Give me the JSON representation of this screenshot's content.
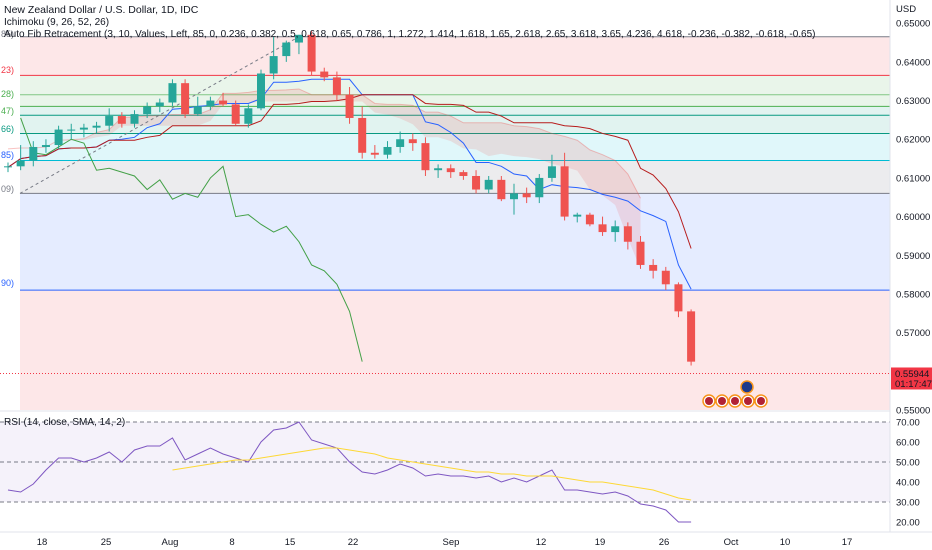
{
  "legend": {
    "title": "New Zealand Dollar / U.S. Dollar, 1D, IDC",
    "ichimoku": "Ichimoku (9, 26, 52, 26)",
    "fib": "Auto Fib Retracement (3, 10, Values, Left, 85, 0, 0.236, 0.382, 0.5, 0.618, 0.65, 0.786, 1, 1.272, 1.414, 1.618, 1.65, 2.618, 2.65, 3.618, 3.65, 4.236, 4.618, -0.236, -0.382, -0.618, -0.65)",
    "rsi": "RSI (14, close, SMA, 14, 2)"
  },
  "price_axis": {
    "currency": "USD",
    "ticks": [
      "0.65000",
      "0.64000",
      "0.63000",
      "0.62000",
      "0.61000",
      "0.60000",
      "0.59000",
      "0.58000",
      "0.57000",
      "0.56000",
      "0.55000"
    ],
    "current_price": "0.55944",
    "countdown": "01:17:47"
  },
  "rsi_axis": {
    "ticks": [
      "70.00",
      "60.00",
      "50.00",
      "40.00",
      "30.00",
      "20.00"
    ]
  },
  "time_axis": {
    "ticks": [
      "18",
      "25",
      "Aug",
      "8",
      "15",
      "22",
      "Sep",
      "12",
      "19",
      "26",
      "Oct",
      "10",
      "17"
    ]
  },
  "fib_tags": [
    {
      "text": "85)",
      "color": "#787b86"
    },
    {
      "text": "23)",
      "color": "#f23645"
    },
    {
      "text": "28)",
      "color": "#4caf50"
    },
    {
      "text": "47)",
      "color": "#4caf50"
    },
    {
      "text": "66)",
      "color": "#089981"
    },
    {
      "text": "85)",
      "color": "#2962ff"
    },
    {
      "text": "09)",
      "color": "#787b86"
    },
    {
      "text": "90)",
      "color": "#2962ff"
    }
  ],
  "colors": {
    "up": "#26a69a",
    "down": "#ef5350",
    "tenkan": "#2962ff",
    "kijun": "#b71c1c",
    "lagging": "#43a047",
    "rsi": "#7e57c2",
    "rsi_ma": "#fdd835",
    "price_tag": "#f23645"
  },
  "chart_data": {
    "type": "candlestick",
    "x_dates": [
      "Jul 15",
      "Jul 18",
      "Jul 19",
      "Jul 20",
      "Jul 21",
      "Jul 22",
      "Jul 25",
      "Jul 26",
      "Jul 27",
      "Jul 28",
      "Jul 29",
      "Aug 1",
      "Aug 2",
      "Aug 3",
      "Aug 4",
      "Aug 5",
      "Aug 8",
      "Aug 9",
      "Aug 10",
      "Aug 11",
      "Aug 12",
      "Aug 15",
      "Aug 16",
      "Aug 17",
      "Aug 18",
      "Aug 19",
      "Aug 22",
      "Aug 23",
      "Aug 24",
      "Aug 25",
      "Aug 26",
      "Aug 29",
      "Aug 30",
      "Aug 31",
      "Sep 1",
      "Sep 2",
      "Sep 5",
      "Sep 6",
      "Sep 7",
      "Sep 8",
      "Sep 9",
      "Sep 12",
      "Sep 13",
      "Sep 14",
      "Sep 15",
      "Sep 16",
      "Sep 19",
      "Sep 20",
      "Sep 21",
      "Sep 22",
      "Sep 23",
      "Sep 26",
      "Sep 27",
      "Sep 28",
      "Sep 29"
    ],
    "ohlc": [
      [
        0.613,
        0.614,
        0.6115,
        0.613
      ],
      [
        0.613,
        0.6185,
        0.612,
        0.6145
      ],
      [
        0.6145,
        0.6195,
        0.613,
        0.618
      ],
      [
        0.618,
        0.62,
        0.6165,
        0.6185
      ],
      [
        0.6185,
        0.6235,
        0.6175,
        0.6225
      ],
      [
        0.6225,
        0.624,
        0.62,
        0.6225
      ],
      [
        0.6225,
        0.624,
        0.6205,
        0.623
      ],
      [
        0.623,
        0.6245,
        0.6215,
        0.6235
      ],
      [
        0.6235,
        0.628,
        0.622,
        0.626
      ],
      [
        0.626,
        0.627,
        0.623,
        0.624
      ],
      [
        0.624,
        0.6275,
        0.623,
        0.6265
      ],
      [
        0.6265,
        0.6295,
        0.6255,
        0.6285
      ],
      [
        0.6285,
        0.6305,
        0.627,
        0.6295
      ],
      [
        0.6295,
        0.6355,
        0.6285,
        0.6345
      ],
      [
        0.6345,
        0.6355,
        0.6255,
        0.6265
      ],
      [
        0.6265,
        0.631,
        0.626,
        0.6285
      ],
      [
        0.6285,
        0.631,
        0.6275,
        0.63
      ],
      [
        0.63,
        0.632,
        0.6285,
        0.629
      ],
      [
        0.629,
        0.63,
        0.6235,
        0.624
      ],
      [
        0.624,
        0.629,
        0.623,
        0.628
      ],
      [
        0.628,
        0.638,
        0.6275,
        0.637
      ],
      [
        0.637,
        0.6465,
        0.6355,
        0.6415
      ],
      [
        0.6415,
        0.6455,
        0.64,
        0.645
      ],
      [
        0.645,
        0.647,
        0.642,
        0.647
      ],
      [
        0.647,
        0.648,
        0.6365,
        0.6375
      ],
      [
        0.6375,
        0.6385,
        0.635,
        0.636
      ],
      [
        0.636,
        0.6375,
        0.63,
        0.6315
      ],
      [
        0.6315,
        0.6335,
        0.624,
        0.6255
      ],
      [
        0.6255,
        0.6285,
        0.615,
        0.6165
      ],
      [
        0.6165,
        0.6185,
        0.615,
        0.616
      ],
      [
        0.616,
        0.6195,
        0.615,
        0.618
      ],
      [
        0.618,
        0.622,
        0.6165,
        0.62
      ],
      [
        0.62,
        0.6215,
        0.617,
        0.619
      ],
      [
        0.619,
        0.6205,
        0.6105,
        0.612
      ],
      [
        0.612,
        0.6135,
        0.61,
        0.6125
      ],
      [
        0.6125,
        0.6135,
        0.61,
        0.6115
      ],
      [
        0.6115,
        0.612,
        0.6095,
        0.6105
      ],
      [
        0.6105,
        0.612,
        0.606,
        0.607
      ],
      [
        0.607,
        0.6105,
        0.606,
        0.6095
      ],
      [
        0.6095,
        0.6105,
        0.604,
        0.6045
      ],
      [
        0.6045,
        0.6085,
        0.6005,
        0.606
      ],
      [
        0.606,
        0.6075,
        0.6035,
        0.605
      ],
      [
        0.605,
        0.611,
        0.6035,
        0.61
      ],
      [
        0.61,
        0.616,
        0.609,
        0.613
      ],
      [
        0.613,
        0.6165,
        0.599,
        0.6
      ],
      [
        0.6,
        0.601,
        0.5985,
        0.6005
      ],
      [
        0.6005,
        0.601,
        0.5975,
        0.598
      ],
      [
        0.598,
        0.6,
        0.595,
        0.596
      ],
      [
        0.596,
        0.599,
        0.5935,
        0.5975
      ],
      [
        0.5975,
        0.5985,
        0.5915,
        0.5935
      ],
      [
        0.5935,
        0.595,
        0.5865,
        0.5875
      ],
      [
        0.5875,
        0.589,
        0.584,
        0.586
      ],
      [
        0.586,
        0.587,
        0.581,
        0.5825
      ],
      [
        0.5825,
        0.583,
        0.574,
        0.5755
      ],
      [
        0.5755,
        0.576,
        0.5615,
        0.5625
      ]
    ],
    "price_range": [
      0.55,
      0.656
    ],
    "rsi_values": [
      36,
      35,
      39,
      46,
      52,
      52,
      50,
      52,
      55,
      50,
      56,
      58,
      58,
      62,
      51,
      54,
      57,
      54,
      52,
      50,
      60,
      66,
      67,
      70,
      61,
      59,
      57,
      50,
      45,
      44,
      46,
      49,
      47,
      43,
      44,
      43,
      43,
      42,
      43,
      40,
      42,
      40,
      43,
      46,
      36,
      36,
      35,
      34,
      35,
      33,
      29,
      28,
      26,
      20,
      20
    ],
    "rsi_ma": [
      null,
      null,
      null,
      null,
      null,
      null,
      null,
      null,
      null,
      null,
      null,
      null,
      null,
      46,
      47,
      48,
      49,
      50,
      51,
      51,
      52,
      53,
      54,
      55,
      56,
      57,
      57,
      56,
      55,
      54,
      52,
      51,
      50,
      49,
      48,
      47,
      46,
      45,
      45,
      44,
      44,
      43,
      43,
      43,
      42,
      41,
      40,
      40,
      39,
      38,
      37,
      36,
      34,
      32,
      31
    ],
    "rsi_range": [
      15,
      75
    ],
    "rsi_levels": [
      70,
      50,
      30
    ],
    "fib_levels": [
      0.6465,
      0.6365,
      0.6315,
      0.6285,
      0.6262,
      0.6215,
      0.6145,
      0.606,
      0.581
    ]
  }
}
